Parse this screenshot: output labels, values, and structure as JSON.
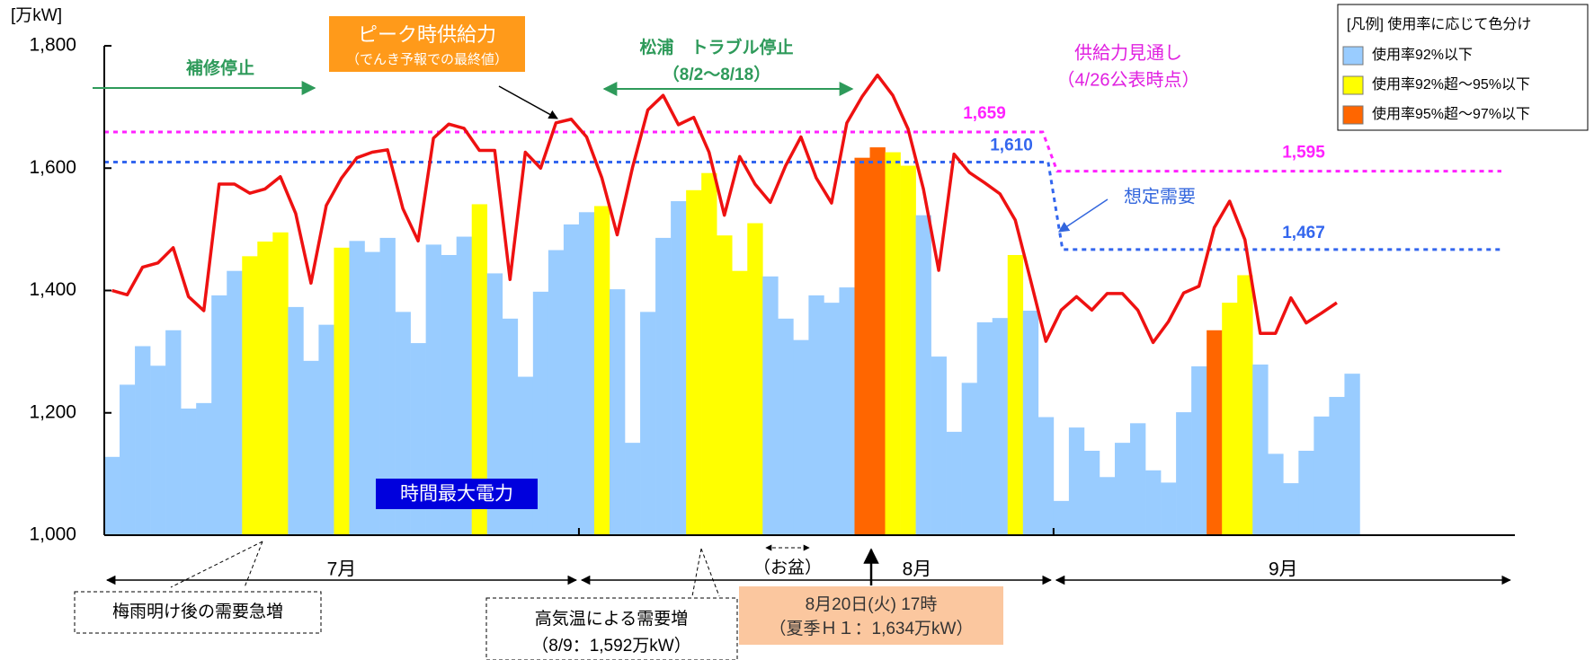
{
  "chart_data": {
    "type": "bar",
    "y_label": "[万kW]",
    "ylim": [
      1000,
      1800
    ],
    "yticks": [
      {
        "value": 1000,
        "label": "1,000"
      },
      {
        "value": 1200,
        "label": "1,200"
      },
      {
        "value": 1400,
        "label": "1,400"
      },
      {
        "value": 1600,
        "label": "1,600"
      },
      {
        "value": 1800,
        "label": "1,800"
      }
    ],
    "months": [
      "7月",
      "8月",
      "9月"
    ],
    "categories": [
      null,
      null,
      null,
      null,
      null,
      null,
      null,
      null,
      null,
      null,
      null,
      null,
      null,
      null,
      null,
      null,
      null,
      null,
      null,
      null,
      null,
      null,
      null,
      null,
      null,
      null,
      null,
      null,
      null,
      null,
      null,
      null,
      null,
      null,
      null,
      null,
      null,
      null,
      null,
      null,
      null,
      null,
      null,
      null,
      null,
      null,
      null,
      null,
      null,
      null,
      null,
      null,
      null,
      null,
      null,
      null,
      null,
      null,
      null,
      null,
      null,
      null,
      null,
      null,
      null,
      null,
      null,
      null,
      null,
      null,
      null,
      null,
      null,
      null,
      null,
      null,
      null,
      null,
      null,
      null,
      null,
      null,
      null,
      null,
      null,
      null,
      null,
      null,
      null,
      null,
      null,
      null
    ],
    "legend": {
      "title": "[凡例] 使用率に応じて色分け",
      "items": [
        {
          "label": "使用率92%以下",
          "color": "#99ccff"
        },
        {
          "label": "使用率92%超～95%以下",
          "color": "#ffff00"
        },
        {
          "label": "使用率95%超～97%以下",
          "color": "#ff6600"
        }
      ]
    },
    "bars": {
      "values": [
        1128,
        1246,
        1309,
        1277,
        1335,
        1207,
        1216,
        1392,
        1432,
        1456,
        1480,
        1495,
        1373,
        1285,
        1344,
        1470,
        1481,
        1463,
        1486,
        1365,
        1314,
        1475,
        1458,
        1488,
        1541,
        1428,
        1354,
        1259,
        1398,
        1466,
        1508,
        1528,
        1538,
        1402,
        1151,
        1365,
        1486,
        1546,
        1564,
        1592,
        1490,
        1432,
        1510,
        1423,
        1354,
        1319,
        1392,
        1380,
        1405,
        1617,
        1634,
        1626,
        1604,
        1523,
        1292,
        1169,
        1249,
        1348,
        1355,
        1458,
        1367,
        1193,
        1056,
        1176,
        1138,
        1095,
        1151,
        1183,
        1106,
        1086,
        1201,
        1276,
        1335,
        1380,
        1425,
        1279,
        1133,
        1085,
        1138,
        1194,
        1226,
        1264,
        null,
        null,
        null,
        null,
        null,
        null,
        null,
        null,
        null,
        null
      ],
      "levels": [
        0,
        0,
        0,
        0,
        0,
        0,
        0,
        0,
        0,
        1,
        1,
        1,
        0,
        0,
        0,
        1,
        0,
        0,
        0,
        0,
        0,
        0,
        0,
        0,
        1,
        0,
        0,
        0,
        0,
        0,
        0,
        0,
        1,
        0,
        0,
        0,
        0,
        0,
        1,
        1,
        1,
        1,
        1,
        0,
        0,
        0,
        0,
        0,
        0,
        2,
        2,
        1,
        1,
        0,
        0,
        0,
        0,
        0,
        0,
        1,
        0,
        0,
        0,
        0,
        0,
        0,
        0,
        0,
        0,
        0,
        0,
        0,
        2,
        1,
        1,
        0,
        0,
        0,
        0,
        0,
        0,
        0,
        null,
        null,
        null,
        null,
        null,
        null,
        null,
        null,
        null,
        null
      ]
    },
    "series": [
      {
        "color": "#ee1111",
        "values": [
          1400,
          1393,
          1438,
          1445,
          1470,
          1390,
          1367,
          1574,
          1574,
          1559,
          1566,
          1586,
          1526,
          1412,
          1539,
          1584,
          1617,
          1626,
          1630,
          1534,
          1481,
          1649,
          1672,
          1665,
          1629,
          1629,
          1418,
          1626,
          1600,
          1674,
          1680,
          1651,
          1584,
          1491,
          1601,
          1695,
          1719,
          1671,
          1683,
          1626,
          1523,
          1619,
          1574,
          1544,
          1604,
          1651,
          1584,
          1543,
          1674,
          1717,
          1752,
          1719,
          1664,
          1566,
          1433,
          1623,
          1593,
          1576,
          1558,
          1515,
          1417,
          1317,
          1368,
          1390,
          1368,
          1395,
          1395,
          1368,
          1315,
          1349,
          1396,
          1407,
          1503,
          1546,
          1483,
          1330,
          1330,
          1388,
          1347,
          1363,
          1380,
          null,
          null,
          null,
          null,
          null,
          null,
          null,
          null,
          null,
          null,
          null
        ]
      }
    ],
    "ref_lines": [
      {
        "color": "#ff22ff",
        "values": [
          1659,
          1595
        ],
        "value_labels": [
          "1,659",
          "1,595"
        ]
      },
      {
        "color": "#3366ee",
        "values": [
          1610,
          1467
        ],
        "value_labels": [
          "1,610",
          "1,467"
        ]
      }
    ],
    "annotations": {
      "maintenance": "補修停止",
      "peak_supply": "ピーク時供給力",
      "peak_supply_note": "（でんき予報での最終値）",
      "matsuura": "松浦　トラブル停止",
      "matsuura_period": "（8/2～8/18）",
      "max_power": "時間最大電力",
      "rainy_end": "梅雨明け後の需要急増",
      "hot": "高気温による需要増",
      "hot_note": "（8/9：1,592万kW）",
      "obon": "（お盆）",
      "peak_day": "8月20日(火)  17時",
      "peak_day_note": "（夏季Ｈ１：1,634万kW）",
      "outlook": "供給力見通し",
      "outlook_note": "（4/26公表時点）",
      "assumed": "想定需要"
    }
  }
}
